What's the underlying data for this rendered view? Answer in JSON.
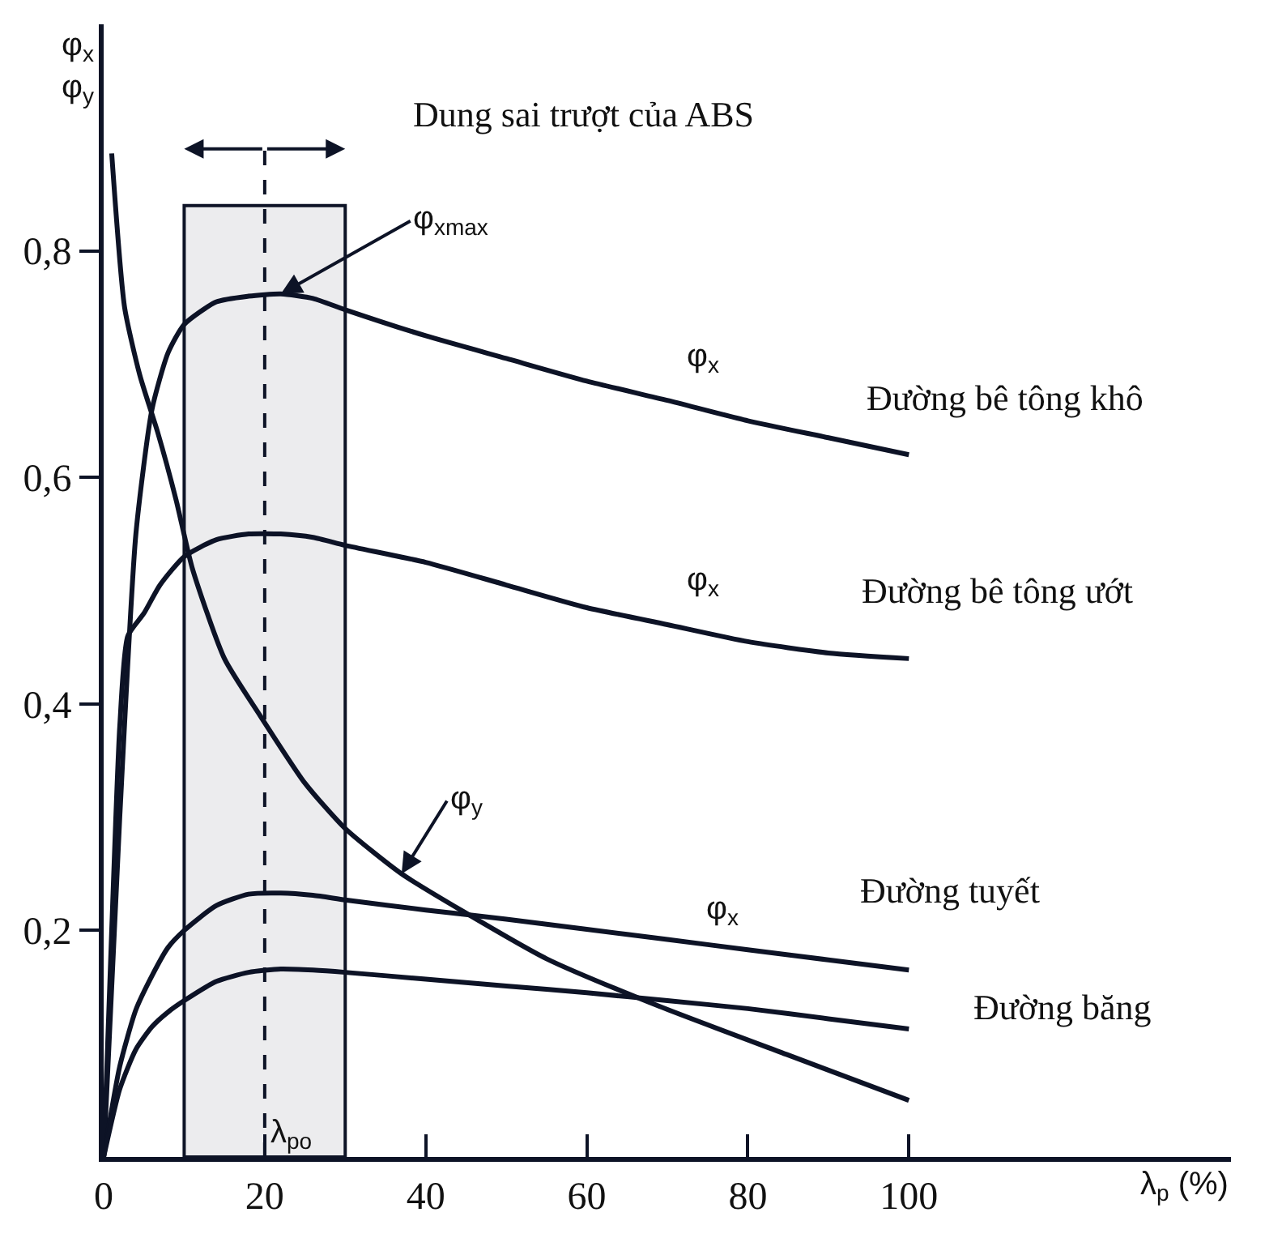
{
  "chart_data": {
    "type": "line",
    "xlabel": "λ$_{p}$ (%)",
    "ylabel": "φ$_{x}$\nφ$_{y}$",
    "xlim": [
      0,
      140
    ],
    "ylim": [
      0,
      1.0
    ],
    "xticks": [
      0,
      20,
      40,
      60,
      80,
      100
    ],
    "yticks": [
      {
        "value": 0.2,
        "label": "0,2"
      },
      {
        "value": 0.4,
        "label": "0,4"
      },
      {
        "value": 0.6,
        "label": "0,6"
      },
      {
        "value": 0.8,
        "label": "0,8"
      }
    ],
    "legend": false,
    "marker": "none",
    "line_style": "solid",
    "series": [
      {
        "name": "Đường bê tông khô",
        "color": "#0d1326",
        "x": [
          0,
          2,
          4,
          6,
          8,
          10,
          14,
          18,
          22,
          26,
          30,
          40,
          50,
          60,
          70,
          80,
          90,
          100
        ],
        "values": [
          0,
          0.3,
          0.55,
          0.66,
          0.71,
          0.735,
          0.755,
          0.76,
          0.762,
          0.758,
          0.748,
          0.725,
          0.705,
          0.685,
          0.668,
          0.65,
          0.635,
          0.62
        ]
      },
      {
        "name": "Đường bê tông ướt",
        "color": "#0d1326",
        "x": [
          0,
          1,
          2,
          3,
          5,
          7,
          10,
          14,
          18,
          22,
          26,
          30,
          40,
          50,
          60,
          70,
          80,
          90,
          100
        ],
        "values": [
          0,
          0.2,
          0.38,
          0.46,
          0.48,
          0.505,
          0.53,
          0.545,
          0.55,
          0.55,
          0.547,
          0.54,
          0.525,
          0.505,
          0.485,
          0.47,
          0.455,
          0.445,
          0.44
        ]
      },
      {
        "name": "Đường tuyết",
        "color": "#0d1326",
        "x": [
          0,
          2,
          4,
          6,
          8,
          10,
          14,
          18,
          22,
          26,
          30,
          40,
          50,
          60,
          70,
          80,
          90,
          100
        ],
        "values": [
          0,
          0.08,
          0.13,
          0.16,
          0.185,
          0.2,
          0.222,
          0.232,
          0.233,
          0.231,
          0.227,
          0.218,
          0.21,
          0.201,
          0.192,
          0.183,
          0.174,
          0.165
        ]
      },
      {
        "name": "Đường băng",
        "color": "#0d1326",
        "x": [
          0,
          2,
          4,
          6,
          8,
          10,
          14,
          18,
          22,
          26,
          30,
          40,
          50,
          60,
          70,
          80,
          90,
          100
        ],
        "values": [
          0,
          0.06,
          0.095,
          0.115,
          0.128,
          0.138,
          0.155,
          0.163,
          0.166,
          0.165,
          0.163,
          0.157,
          0.151,
          0.145,
          0.138,
          0.131,
          0.122,
          0.113
        ]
      },
      {
        "color": "#0d1326",
        "x": [
          1,
          2.6,
          4.5,
          6.7,
          9,
          11,
          15,
          19.4,
          25,
          30,
          37,
          44.6,
          55,
          69,
          85,
          100
        ],
        "values": [
          0.886,
          0.75,
          0.69,
          0.64,
          0.58,
          0.52,
          0.44,
          0.39,
          0.33,
          0.29,
          0.25,
          0.217,
          0.175,
          0.133,
          0.09,
          0.05
        ]
      }
    ],
    "bands": [
      {
        "axis": "x",
        "from": 10,
        "to": 30,
        "label": "Dung sai trượt của ABS",
        "color": "#0d1326"
      }
    ],
    "ref_lines": [
      {
        "axis": "x",
        "value": 20,
        "label": "λ$_{po}$",
        "color": "#0d1326",
        "line_style": "dashed"
      }
    ],
    "annotations": [
      {
        "text": "φ$_{xmax}$",
        "x": 22,
        "y": 0.762
      },
      {
        "text": "φ$_{y}$",
        "x": 37,
        "y": 0.25
      },
      {
        "text": "φ$_{x}$",
        "x": 70,
        "y": 0.668
      },
      {
        "text": "φ$_{x}$",
        "x": 70,
        "y": 0.47
      },
      {
        "text": "φ$_{x}$",
        "x": 80,
        "y": 0.183
      }
    ]
  }
}
